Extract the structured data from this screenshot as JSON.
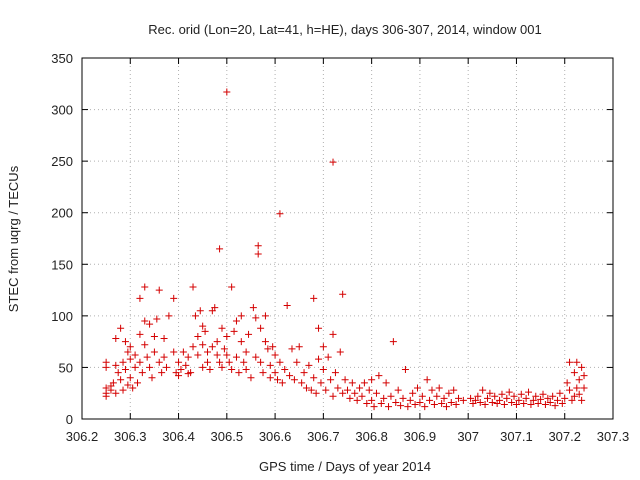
{
  "chart_data": {
    "type": "scatter",
    "title": "Rec. orid (Lon=20, Lat=41, h=HE), days 306-307, 2014, window 001",
    "xlabel": "GPS time / Days of year 2014",
    "ylabel": "STEC from uqrg / TECUs",
    "xlim": [
      306.2,
      307.3
    ],
    "ylim": [
      0,
      350
    ],
    "x_ticks": [
      306.2,
      306.3,
      306.4,
      306.5,
      306.6,
      306.7,
      306.8,
      306.9,
      307.0,
      307.1,
      307.2,
      307.3
    ],
    "x_tick_labels": [
      "306.2",
      "306.3",
      "306.4",
      "306.5",
      "306.6",
      "306.7",
      "306.8",
      "306.9",
      "307",
      "307.1",
      "307.2",
      "307.3"
    ],
    "y_ticks": [
      0,
      50,
      100,
      150,
      200,
      250,
      300,
      350
    ],
    "y_tick_labels": [
      "0",
      "50",
      "100",
      "150",
      "200",
      "250",
      "300",
      "350"
    ],
    "grid": true,
    "marker": "+",
    "color": "#d40000",
    "series": [
      {
        "name": "STEC",
        "points": [
          [
            306.25,
            22
          ],
          [
            306.25,
            25
          ],
          [
            306.25,
            30
          ],
          [
            306.25,
            50
          ],
          [
            306.25,
            55
          ],
          [
            306.26,
            28
          ],
          [
            306.26,
            32
          ],
          [
            306.265,
            35
          ],
          [
            306.27,
            78
          ],
          [
            306.27,
            52
          ],
          [
            306.27,
            25
          ],
          [
            306.275,
            45
          ],
          [
            306.28,
            88
          ],
          [
            306.28,
            38
          ],
          [
            306.285,
            28
          ],
          [
            306.285,
            55
          ],
          [
            306.29,
            75
          ],
          [
            306.29,
            48
          ],
          [
            306.295,
            65
          ],
          [
            306.295,
            33
          ],
          [
            306.3,
            70
          ],
          [
            306.3,
            58
          ],
          [
            306.3,
            40
          ],
          [
            306.305,
            30
          ],
          [
            306.31,
            62
          ],
          [
            306.31,
            50
          ],
          [
            306.315,
            35
          ],
          [
            306.32,
            82
          ],
          [
            306.32,
            117
          ],
          [
            306.32,
            55
          ],
          [
            306.325,
            45
          ],
          [
            306.33,
            128
          ],
          [
            306.33,
            95
          ],
          [
            306.33,
            72
          ],
          [
            306.335,
            60
          ],
          [
            306.34,
            92
          ],
          [
            306.34,
            50
          ],
          [
            306.345,
            40
          ],
          [
            306.35,
            80
          ],
          [
            306.35,
            65
          ],
          [
            306.355,
            97
          ],
          [
            306.36,
            125
          ],
          [
            306.36,
            55
          ],
          [
            306.365,
            45
          ],
          [
            306.37,
            78
          ],
          [
            306.37,
            60
          ],
          [
            306.375,
            50
          ],
          [
            306.38,
            100
          ],
          [
            306.39,
            117
          ],
          [
            306.39,
            65
          ],
          [
            306.395,
            45
          ],
          [
            306.4,
            55
          ],
          [
            306.4,
            42
          ],
          [
            306.405,
            48
          ],
          [
            306.41,
            65
          ],
          [
            306.415,
            52
          ],
          [
            306.42,
            60
          ],
          [
            306.42,
            44
          ],
          [
            306.425,
            45
          ],
          [
            306.43,
            70
          ],
          [
            306.43,
            128
          ],
          [
            306.435,
            100
          ],
          [
            306.44,
            80
          ],
          [
            306.44,
            62
          ],
          [
            306.445,
            105
          ],
          [
            306.45,
            90
          ],
          [
            306.45,
            72
          ],
          [
            306.45,
            50
          ],
          [
            306.455,
            85
          ],
          [
            306.46,
            65
          ],
          [
            306.46,
            55
          ],
          [
            306.465,
            48
          ],
          [
            306.47,
            105
          ],
          [
            306.47,
            70
          ],
          [
            306.475,
            108
          ],
          [
            306.48,
            75
          ],
          [
            306.48,
            62
          ],
          [
            306.485,
            165
          ],
          [
            306.485,
            55
          ],
          [
            306.49,
            88
          ],
          [
            306.49,
            50
          ],
          [
            306.495,
            68
          ],
          [
            306.5,
            317
          ],
          [
            306.5,
            80
          ],
          [
            306.5,
            62
          ],
          [
            306.505,
            55
          ],
          [
            306.51,
            48
          ],
          [
            306.51,
            128
          ],
          [
            306.515,
            85
          ],
          [
            306.52,
            95
          ],
          [
            306.52,
            60
          ],
          [
            306.525,
            45
          ],
          [
            306.53,
            75
          ],
          [
            306.53,
            100
          ],
          [
            306.535,
            55
          ],
          [
            306.54,
            65
          ],
          [
            306.54,
            48
          ],
          [
            306.545,
            82
          ],
          [
            306.55,
            40
          ],
          [
            306.555,
            108
          ],
          [
            306.56,
            98
          ],
          [
            306.56,
            60
          ],
          [
            306.565,
            168
          ],
          [
            306.565,
            160
          ],
          [
            306.57,
            88
          ],
          [
            306.57,
            55
          ],
          [
            306.575,
            45
          ],
          [
            306.58,
            75
          ],
          [
            306.58,
            100
          ],
          [
            306.585,
            68
          ],
          [
            306.59,
            52
          ],
          [
            306.59,
            40
          ],
          [
            306.595,
            70
          ],
          [
            306.6,
            62
          ],
          [
            306.6,
            45
          ],
          [
            306.605,
            38
          ],
          [
            306.61,
            199
          ],
          [
            306.61,
            55
          ],
          [
            306.615,
            35
          ],
          [
            306.62,
            48
          ],
          [
            306.625,
            110
          ],
          [
            306.63,
            42
          ],
          [
            306.635,
            68
          ],
          [
            306.64,
            38
          ],
          [
            306.645,
            55
          ],
          [
            306.65,
            70
          ],
          [
            306.655,
            35
          ],
          [
            306.66,
            45
          ],
          [
            306.665,
            30
          ],
          [
            306.67,
            52
          ],
          [
            306.675,
            28
          ],
          [
            306.68,
            117
          ],
          [
            306.68,
            40
          ],
          [
            306.685,
            25
          ],
          [
            306.69,
            88
          ],
          [
            306.69,
            58
          ],
          [
            306.695,
            35
          ],
          [
            306.7,
            70
          ],
          [
            306.7,
            48
          ],
          [
            306.705,
            28
          ],
          [
            306.71,
            60
          ],
          [
            306.715,
            38
          ],
          [
            306.72,
            249
          ],
          [
            306.72,
            82
          ],
          [
            306.72,
            22
          ],
          [
            306.725,
            45
          ],
          [
            306.73,
            30
          ],
          [
            306.735,
            65
          ],
          [
            306.74,
            121
          ],
          [
            306.74,
            25
          ],
          [
            306.745,
            38
          ],
          [
            306.75,
            28
          ],
          [
            306.755,
            20
          ],
          [
            306.76,
            35
          ],
          [
            306.765,
            25
          ],
          [
            306.77,
            18
          ],
          [
            306.775,
            30
          ],
          [
            306.78,
            22
          ],
          [
            306.785,
            35
          ],
          [
            306.79,
            15
          ],
          [
            306.795,
            28
          ],
          [
            306.8,
            38
          ],
          [
            306.8,
            18
          ],
          [
            306.805,
            12
          ],
          [
            306.81,
            25
          ],
          [
            306.815,
            42
          ],
          [
            306.82,
            15
          ],
          [
            306.825,
            20
          ],
          [
            306.83,
            35
          ],
          [
            306.835,
            12
          ],
          [
            306.84,
            22
          ],
          [
            306.845,
            75
          ],
          [
            306.85,
            16
          ],
          [
            306.855,
            28
          ],
          [
            306.86,
            13
          ],
          [
            306.865,
            20
          ],
          [
            306.87,
            48
          ],
          [
            306.875,
            12
          ],
          [
            306.88,
            18
          ],
          [
            306.885,
            25
          ],
          [
            306.89,
            14
          ],
          [
            306.895,
            30
          ],
          [
            306.9,
            16
          ],
          [
            306.905,
            22
          ],
          [
            306.91,
            12
          ],
          [
            306.915,
            38
          ],
          [
            306.92,
            18
          ],
          [
            306.925,
            28
          ],
          [
            306.93,
            14
          ],
          [
            306.935,
            22
          ],
          [
            306.94,
            30
          ],
          [
            306.945,
            15
          ],
          [
            306.95,
            20
          ],
          [
            306.955,
            12
          ],
          [
            306.96,
            25
          ],
          [
            306.965,
            16
          ],
          [
            306.97,
            28
          ],
          [
            306.975,
            14
          ],
          [
            306.98,
            20
          ],
          [
            306.99,
            18
          ],
          [
            307.005,
            20
          ],
          [
            307.01,
            15
          ],
          [
            307.015,
            18
          ],
          [
            307.02,
            22
          ],
          [
            307.025,
            16
          ],
          [
            307.03,
            28
          ],
          [
            307.035,
            14
          ],
          [
            307.04,
            20
          ],
          [
            307.045,
            25
          ],
          [
            307.05,
            16
          ],
          [
            307.055,
            22
          ],
          [
            307.06,
            15
          ],
          [
            307.065,
            18
          ],
          [
            307.07,
            24
          ],
          [
            307.075,
            14
          ],
          [
            307.08,
            20
          ],
          [
            307.085,
            26
          ],
          [
            307.09,
            16
          ],
          [
            307.095,
            22
          ],
          [
            307.1,
            14
          ],
          [
            307.105,
            18
          ],
          [
            307.11,
            24
          ],
          [
            307.115,
            15
          ],
          [
            307.12,
            20
          ],
          [
            307.125,
            26
          ],
          [
            307.13,
            14
          ],
          [
            307.135,
            18
          ],
          [
            307.14,
            22
          ],
          [
            307.145,
            15
          ],
          [
            307.15,
            19
          ],
          [
            307.155,
            24
          ],
          [
            307.16,
            14
          ],
          [
            307.165,
            20
          ],
          [
            307.17,
            16
          ],
          [
            307.175,
            22
          ],
          [
            307.18,
            13
          ],
          [
            307.185,
            18
          ],
          [
            307.19,
            25
          ],
          [
            307.195,
            15
          ],
          [
            307.2,
            20
          ],
          [
            307.205,
            35
          ],
          [
            307.21,
            55
          ],
          [
            307.21,
            28
          ],
          [
            307.215,
            18
          ],
          [
            307.22,
            45
          ],
          [
            307.22,
            22
          ],
          [
            307.225,
            55
          ],
          [
            307.225,
            30
          ],
          [
            307.23,
            38
          ],
          [
            307.23,
            24
          ],
          [
            307.235,
            50
          ],
          [
            307.235,
            18
          ],
          [
            307.24,
            42
          ],
          [
            307.24,
            30
          ]
        ]
      }
    ]
  }
}
